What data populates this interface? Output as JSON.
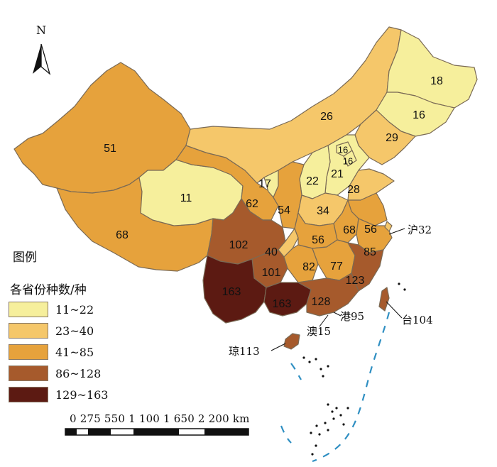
{
  "north_label": "N",
  "legend": {
    "title": "图例",
    "subtitle": "各省份种数/种",
    "classes": [
      {
        "label": "11~22",
        "color": "#f6ef9c"
      },
      {
        "label": "23~40",
        "color": "#f5c76a"
      },
      {
        "label": "41~85",
        "color": "#e6a23c"
      },
      {
        "label": "86~128",
        "color": "#a65a2c"
      },
      {
        "label": "129~163",
        "color": "#5c1a12"
      }
    ]
  },
  "scale_bar": {
    "labels": "0 275 550    1 100  1 650   2 200 km"
  },
  "regions": [
    {
      "value": "51"
    },
    {
      "value": "68"
    },
    {
      "value": "11"
    },
    {
      "value": "26"
    },
    {
      "value": "18"
    },
    {
      "value": "16"
    },
    {
      "value": "29"
    },
    {
      "value": "16"
    },
    {
      "value": "16"
    },
    {
      "value": "21"
    },
    {
      "value": "22"
    },
    {
      "value": "28"
    },
    {
      "value": "17"
    },
    {
      "value": "62"
    },
    {
      "value": "54"
    },
    {
      "value": "34"
    },
    {
      "value": "68"
    },
    {
      "value": "56"
    },
    {
      "value": "56"
    },
    {
      "value": "85"
    },
    {
      "value": "102"
    },
    {
      "value": "40"
    },
    {
      "value": "101"
    },
    {
      "value": "82"
    },
    {
      "value": "77"
    },
    {
      "value": "123"
    },
    {
      "value": "163"
    },
    {
      "value": "163"
    },
    {
      "value": "128"
    }
  ],
  "callouts": [
    {
      "label": "沪32"
    },
    {
      "label": "港95"
    },
    {
      "label": "澳15"
    },
    {
      "label": "台104"
    },
    {
      "label": "琼113"
    }
  ]
}
